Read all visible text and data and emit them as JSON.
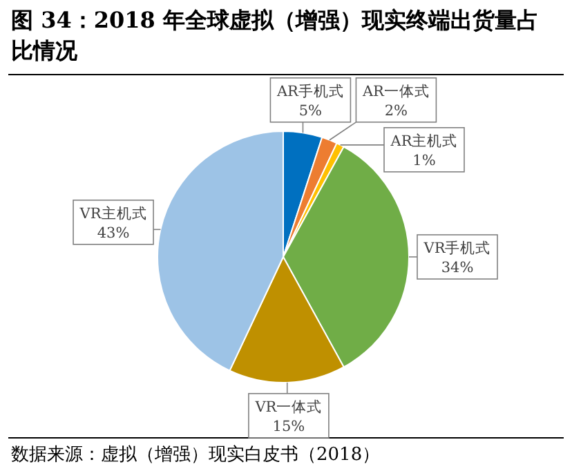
{
  "chart_data": {
    "type": "pie",
    "title": "图 34：2018 年全球虚拟（增强）现实终端出货量占比情况",
    "categories": [
      "AR手机式",
      "AR一体式",
      "AR主机式",
      "VR手机式",
      "VR一体式",
      "VR主机式"
    ],
    "values": [
      5,
      2,
      1,
      34,
      15,
      43
    ],
    "value_labels": [
      "5%",
      "2%",
      "1%",
      "34%",
      "15%",
      "43%"
    ],
    "colors": [
      "#0070c0",
      "#ed7d31",
      "#ffc000",
      "#70ad47",
      "#bf9000",
      "#9dc3e6"
    ],
    "annotations": [
      "数据来源：虚拟（增强）现实白皮书（2018）"
    ]
  }
}
